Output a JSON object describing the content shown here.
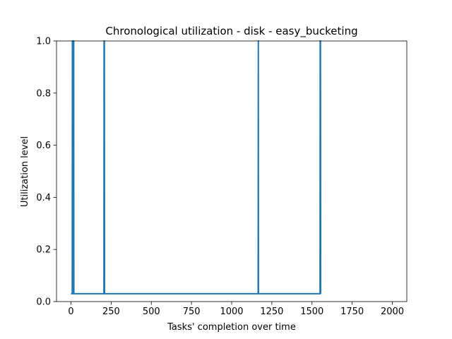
{
  "chart_data": {
    "type": "line",
    "title": "Chronological utilization - disk - easy_bucketing",
    "xlabel": "Tasks' completion over time",
    "ylabel": "Utilization level",
    "xlim": [
      -90,
      2090
    ],
    "ylim": [
      0.0,
      1.0
    ],
    "xticks": [
      0,
      250,
      500,
      750,
      1000,
      1250,
      1500,
      1750,
      2000
    ],
    "yticks": [
      0.0,
      0.2,
      0.4,
      0.6,
      0.8,
      1.0
    ],
    "xtick_labels": [
      "0",
      "250",
      "500",
      "750",
      "1000",
      "1250",
      "1500",
      "1750",
      "2000"
    ],
    "ytick_labels": [
      "0.0",
      "0.2",
      "0.4",
      "0.6",
      "0.8",
      "1.0"
    ],
    "grid": false,
    "colors": {
      "line": "#1f77b4",
      "axes": "#000000",
      "background": "#ffffff"
    },
    "series": [
      {
        "x": [
          0,
          8,
          9,
          10,
          11,
          12,
          13,
          14,
          15,
          16,
          17,
          18,
          205,
          206,
          207,
          208,
          209,
          210,
          1165,
          1166,
          1167,
          1168,
          1550,
          1551,
          1552,
          1553,
          1554,
          1555
        ],
        "y": [
          0.03,
          0.03,
          1.0,
          0.03,
          1.0,
          0.03,
          1.0,
          0.03,
          1.0,
          0.03,
          1.0,
          0.03,
          0.03,
          1.0,
          0.03,
          1.0,
          0.03,
          0.03,
          0.03,
          1.0,
          0.03,
          0.03,
          0.03,
          1.0,
          0.03,
          1.0,
          0.03,
          0.03
        ]
      }
    ]
  }
}
